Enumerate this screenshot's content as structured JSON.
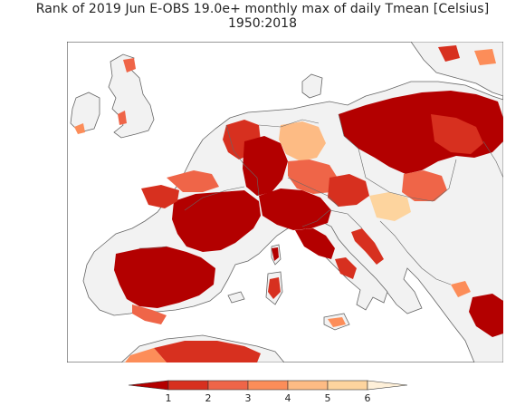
{
  "title": "Rank of 2019 Jun E-OBS 19.0e+ monthly max of daily Tmean [Celsius]",
  "subtitle": "1950:2018",
  "legend": {
    "ticks": [
      "1",
      "2",
      "3",
      "4",
      "5",
      "6"
    ],
    "colors": [
      "#b30000",
      "#d7301f",
      "#ef6548",
      "#fc8d59",
      "#fdbb84",
      "#fdd49e",
      "#fef0d9"
    ]
  },
  "colors": {
    "no_data_land": "#f2f2f2",
    "sea": "#ffffff",
    "coast": "#555555",
    "rank_1": "#b30000",
    "rank_2": "#d7301f",
    "rank_3": "#ef6548",
    "rank_4": "#fc8d59",
    "rank_5": "#fdbb84",
    "rank_6": "#fdd49e"
  }
}
